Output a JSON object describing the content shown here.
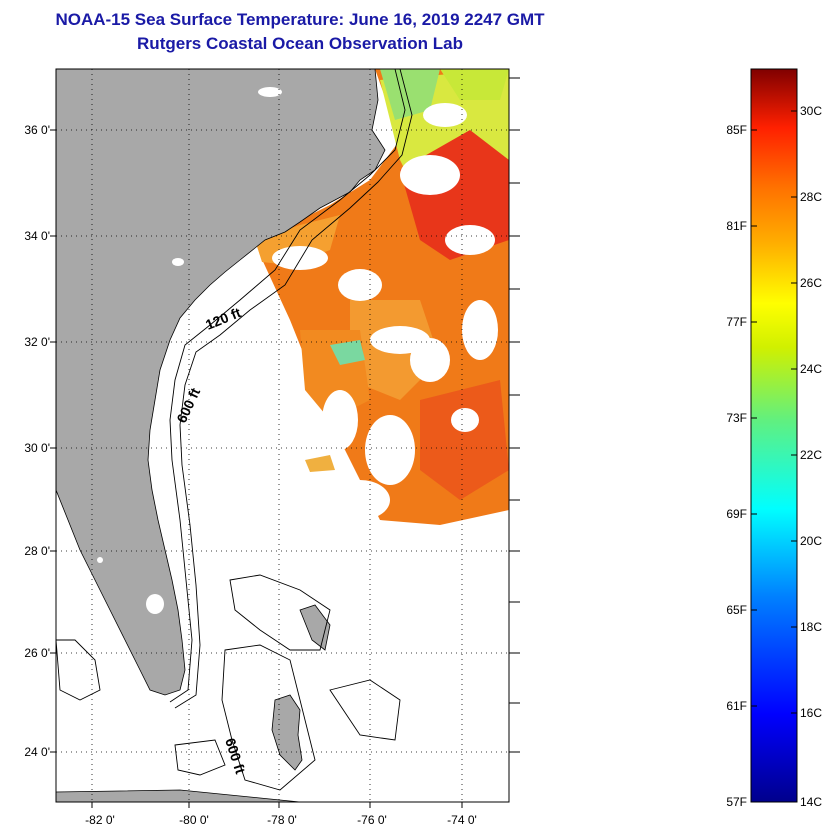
{
  "title": {
    "line1": "NOAA-15 Sea Surface Temperature:  June 16, 2019 2247 GMT",
    "line2": "Rutgers Coastal Ocean Observation Lab"
  },
  "axes": {
    "lat_ticks": [
      "36 0'",
      "34 0'",
      "32 0'",
      "30 0'",
      "28 0'",
      "26 0'",
      "24 0'"
    ],
    "lon_ticks": [
      "-82 0'",
      "-80 0'",
      "-78 0'",
      "-76 0'",
      "-74 0'"
    ]
  },
  "depth_labels": [
    "120 ft",
    "600 ft",
    "600 ft"
  ],
  "colorbar": {
    "fahrenheit": [
      "85F",
      "81F",
      "77F",
      "73F",
      "69F",
      "65F",
      "61F",
      "57F"
    ],
    "celsius": [
      "30C",
      "28C",
      "26C",
      "24C",
      "22C",
      "20C",
      "18C",
      "16C",
      "14C"
    ]
  },
  "colors": {
    "land": "#a8a8a8",
    "title": "#1a1aa6",
    "warm": "#f07a18",
    "hot": "#e8361a",
    "cool": "#b8e830"
  }
}
